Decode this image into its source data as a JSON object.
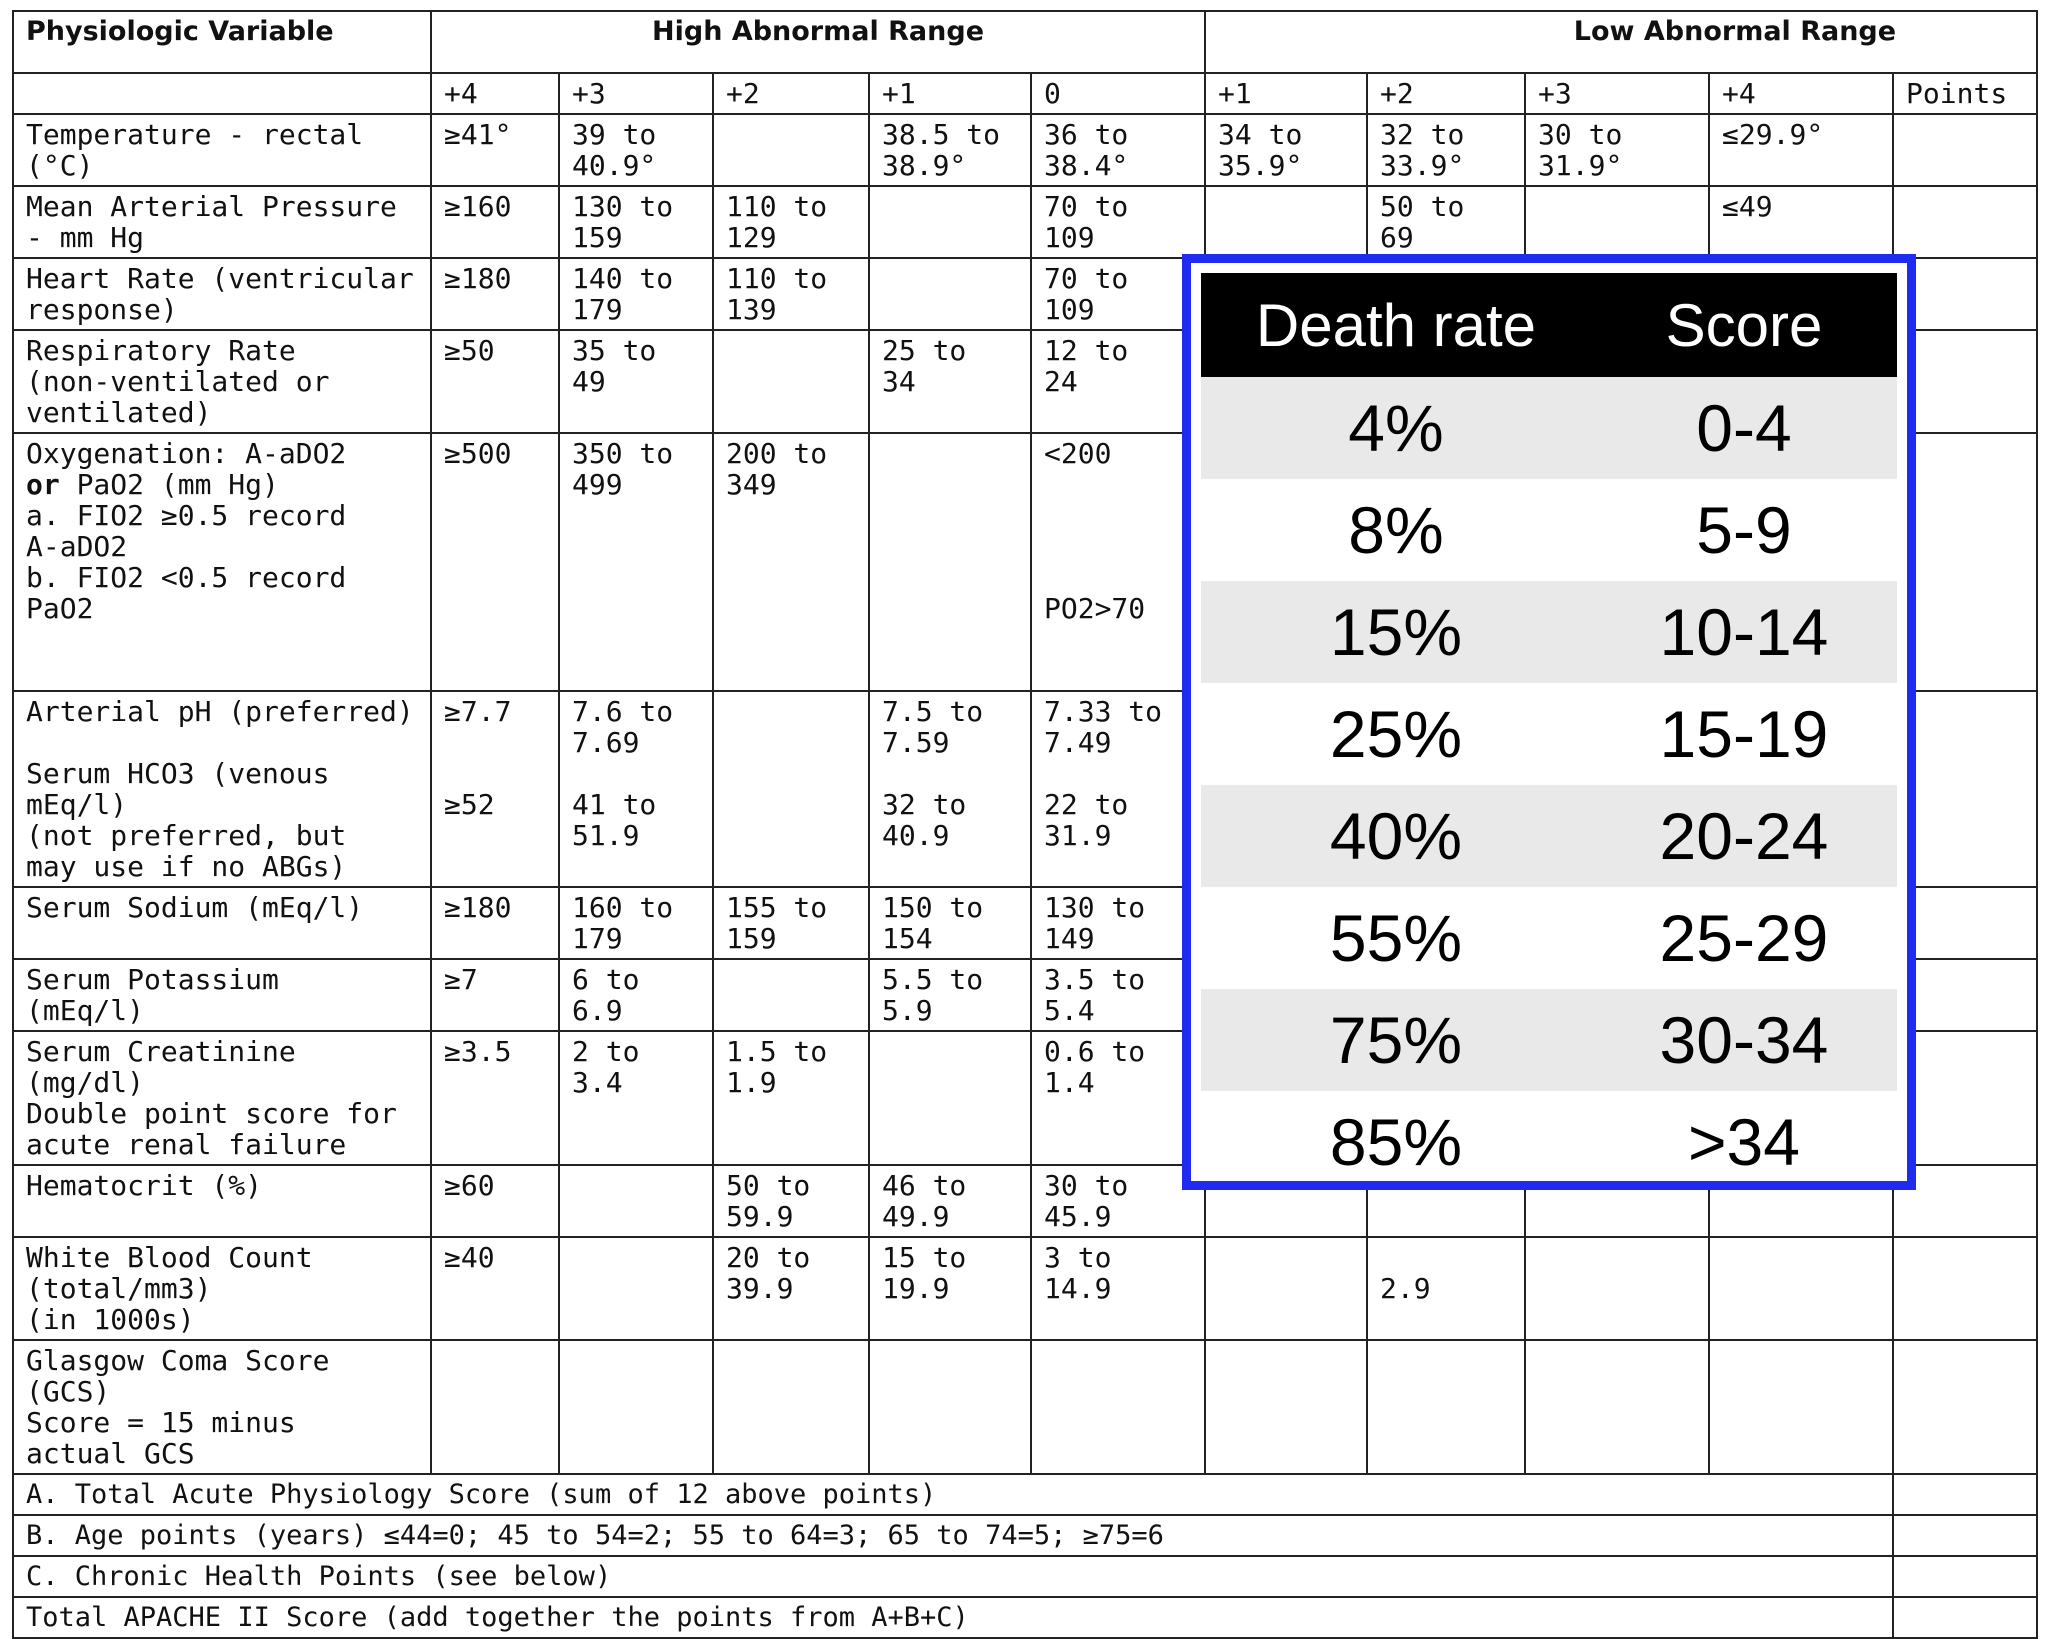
{
  "table": {
    "header": {
      "variable": "Physiologic Variable",
      "high": "High Abnormal Range",
      "low": "Low Abnormal Range",
      "levels": [
        "+4",
        "+3",
        "+2",
        "+1",
        "0",
        "+1",
        "+2",
        "+3",
        "+4"
      ],
      "points": "Points"
    },
    "rows": [
      {
        "name": [
          "Temperature - rectal",
          "(°C)"
        ],
        "cells": [
          [
            "≥41°"
          ],
          [
            "39 to",
            "40.9°"
          ],
          [],
          [
            "38.5 to",
            "38.9°"
          ],
          [
            "36 to",
            "38.4°"
          ],
          [
            "34 to",
            "35.9°"
          ],
          [
            "32 to",
            "33.9°"
          ],
          [
            "30 to",
            "31.9°"
          ],
          [
            "≤29.9°"
          ]
        ]
      },
      {
        "name": [
          "Mean Arterial Pressure",
          "- mm Hg"
        ],
        "cells": [
          [
            "≥160"
          ],
          [
            "130 to",
            "159"
          ],
          [
            "110 to",
            "129"
          ],
          [],
          [
            "70 to",
            "109"
          ],
          [],
          [
            "50 to",
            "69"
          ],
          [],
          [
            "≤49"
          ]
        ]
      },
      {
        "name": [
          "Heart Rate (ventricular",
          "response)"
        ],
        "cells": [
          [
            "≥180"
          ],
          [
            "140 to",
            "179"
          ],
          [
            "110 to",
            "139"
          ],
          [],
          [
            "70 to",
            "109"
          ],
          [],
          [],
          [],
          []
        ]
      },
      {
        "name": [
          "Respiratory Rate",
          "(non-ventilated or",
          "ventilated)"
        ],
        "cells": [
          [
            "≥50"
          ],
          [
            "35 to",
            "49"
          ],
          [],
          [
            "25 to",
            "34"
          ],
          [
            "12 to",
            "24"
          ],
          [],
          [],
          [],
          []
        ]
      },
      {
        "name": [
          "Oxygenation: A-aDO2",
          "or PaO2 (mm Hg)",
          "a. FIO2 ≥0.5 record",
          "A-aDO2",
          "b. FIO2 <0.5 record",
          "PaO2"
        ],
        "cells": [
          [
            "≥500"
          ],
          [
            "350 to",
            "499"
          ],
          [
            "200 to",
            "349"
          ],
          [],
          [
            "<200",
            "",
            "",
            "",
            "",
            "PO2>70"
          ],
          [],
          [],
          [],
          []
        ]
      },
      {
        "name": [
          "Arterial pH (preferred)",
          "",
          "Serum HCO3 (venous",
          "mEq/l)",
          "(not preferred, but",
          "may use if no ABGs)"
        ],
        "cells": [
          [
            "≥7.7",
            "",
            "",
            "≥52"
          ],
          [
            "7.6 to",
            "7.69",
            "",
            "41 to",
            "51.9"
          ],
          [],
          [
            "7.5 to",
            "7.59",
            "",
            "32 to",
            "40.9"
          ],
          [
            "7.33 to",
            "7.49",
            "",
            "22 to",
            "31.9"
          ],
          [],
          [],
          [],
          []
        ]
      },
      {
        "name": [
          "Serum Sodium (mEq/l)"
        ],
        "cells": [
          [
            "≥180"
          ],
          [
            "160 to",
            "179"
          ],
          [
            "155 to",
            "159"
          ],
          [
            "150 to",
            "154"
          ],
          [
            "130 to",
            "149"
          ],
          [],
          [],
          [],
          []
        ]
      },
      {
        "name": [
          "Serum Potassium",
          "(mEq/l)"
        ],
        "cells": [
          [
            "≥7"
          ],
          [
            "6 to",
            "6.9"
          ],
          [],
          [
            "5.5 to",
            "5.9"
          ],
          [
            "3.5 to",
            "5.4"
          ],
          [],
          [],
          [],
          []
        ]
      },
      {
        "name": [
          "Serum Creatinine",
          "(mg/dl)",
          "Double point score for",
          "acute renal failure"
        ],
        "cells": [
          [
            "≥3.5"
          ],
          [
            "2 to",
            "3.4"
          ],
          [
            "1.5 to",
            "1.9"
          ],
          [],
          [
            "0.6 to",
            "1.4"
          ],
          [],
          [],
          [],
          []
        ]
      },
      {
        "name": [
          "Hematocrit (%)"
        ],
        "cells": [
          [
            "≥60"
          ],
          [],
          [
            "50 to",
            "59.9"
          ],
          [
            "46 to",
            "49.9"
          ],
          [
            "30 to",
            "45.9"
          ],
          [],
          [],
          [],
          []
        ]
      },
      {
        "name": [
          "White Blood Count",
          "(total/mm3)",
          "(in 1000s)"
        ],
        "cells": [
          [
            "≥40"
          ],
          [],
          [
            "20 to",
            "39.9"
          ],
          [
            "15 to",
            "19.9"
          ],
          [
            "3 to",
            "14.9"
          ],
          [],
          [
            "",
            "2.9"
          ],
          [],
          []
        ]
      },
      {
        "name": [
          "Glasgow Coma Score",
          "(GCS)",
          "Score = 15 minus",
          "actual GCS"
        ],
        "cells": [
          [],
          [],
          [],
          [],
          [],
          [],
          [],
          [],
          []
        ]
      }
    ],
    "footer": [
      "A. Total Acute Physiology Score (sum of 12 above points)",
      "B. Age points (years) ≤44=0; 45 to 54=2; 55 to 64=3; 65 to 74=5; ≥75=6",
      "C. Chronic Health Points (see below)",
      "Total APACHE II Score (add together the points from A+B+C)"
    ]
  },
  "overlay": {
    "header": [
      "Death rate",
      "Score"
    ],
    "rows": [
      [
        "4%",
        "0-4"
      ],
      [
        "8%",
        "5-9"
      ],
      [
        "15%",
        "10-14"
      ],
      [
        "25%",
        "15-19"
      ],
      [
        "40%",
        "20-24"
      ],
      [
        "55%",
        "25-29"
      ],
      [
        "75%",
        "30-34"
      ],
      [
        "85%",
        ">34"
      ]
    ],
    "border_color": "#1f2cf0",
    "header_bg": "#000000",
    "stripe_color": "#e9e9e9"
  }
}
